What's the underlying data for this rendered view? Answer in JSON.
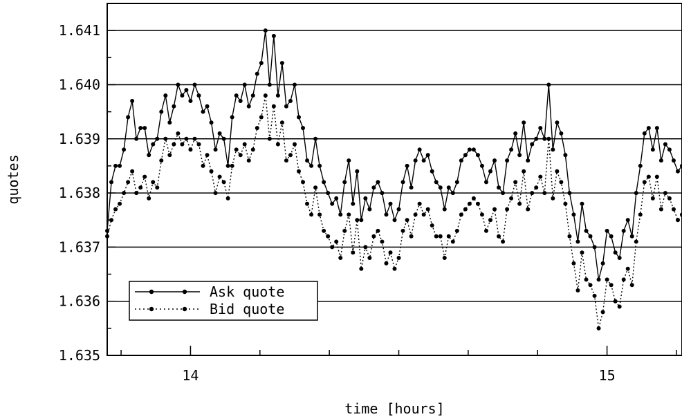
{
  "chart_data": {
    "type": "line",
    "xlabel": "time [hours]",
    "ylabel": "quotes",
    "xlim": [
      13.8,
      15.18
    ],
    "ylim": [
      1.635,
      1.6415
    ],
    "x_ticks": [
      14,
      15
    ],
    "x_tick_labels": [
      "14",
      "15"
    ],
    "y_ticks": [
      1.635,
      1.636,
      1.637,
      1.638,
      1.639,
      1.64,
      1.641
    ],
    "y_tick_labels": [
      "1.635",
      "1.636",
      "1.637",
      "1.638",
      "1.639",
      "1.640",
      "1.641"
    ],
    "grid": "horizontal",
    "legend_position": "bottom-left",
    "series": [
      {
        "name": "Ask quote",
        "style": "solid",
        "color": "#000000",
        "x": [
          13.8,
          13.81,
          13.82,
          13.83,
          13.84,
          13.85,
          13.86,
          13.87,
          13.88,
          13.89,
          13.9,
          13.91,
          13.92,
          13.93,
          13.94,
          13.95,
          13.96,
          13.97,
          13.98,
          13.99,
          14.0,
          14.01,
          14.02,
          14.03,
          14.04,
          14.05,
          14.06,
          14.07,
          14.08,
          14.09,
          14.1,
          14.11,
          14.12,
          14.13,
          14.14,
          14.15,
          14.16,
          14.17,
          14.18,
          14.19,
          14.2,
          14.21,
          14.22,
          14.23,
          14.24,
          14.25,
          14.26,
          14.27,
          14.28,
          14.29,
          14.3,
          14.31,
          14.32,
          14.33,
          14.34,
          14.35,
          14.36,
          14.37,
          14.38,
          14.39,
          14.4,
          14.41,
          14.42,
          14.43,
          14.44,
          14.45,
          14.46,
          14.47,
          14.48,
          14.49,
          14.5,
          14.51,
          14.52,
          14.53,
          14.54,
          14.55,
          14.56,
          14.57,
          14.58,
          14.59,
          14.6,
          14.61,
          14.62,
          14.63,
          14.64,
          14.65,
          14.66,
          14.67,
          14.68,
          14.69,
          14.7,
          14.71,
          14.72,
          14.73,
          14.74,
          14.75,
          14.76,
          14.77,
          14.78,
          14.79,
          14.8,
          14.81,
          14.82,
          14.83,
          14.84,
          14.85,
          14.86,
          14.87,
          14.88,
          14.89,
          14.9,
          14.91,
          14.92,
          14.93,
          14.94,
          14.95,
          14.96,
          14.97,
          14.98,
          14.99,
          15.0,
          15.01,
          15.02,
          15.03,
          15.04,
          15.05,
          15.06,
          15.07,
          15.08,
          15.09,
          15.1,
          15.11,
          15.12,
          15.13,
          15.14,
          15.15,
          15.16,
          15.17,
          15.18
        ],
        "y": [
          1.6373,
          1.6382,
          1.6385,
          1.6385,
          1.6388,
          1.6394,
          1.6397,
          1.639,
          1.6392,
          1.6392,
          1.6387,
          1.6389,
          1.639,
          1.6395,
          1.6398,
          1.6393,
          1.6396,
          1.64,
          1.6398,
          1.6399,
          1.6397,
          1.64,
          1.6398,
          1.6395,
          1.6396,
          1.6393,
          1.6388,
          1.6391,
          1.639,
          1.6385,
          1.6394,
          1.6398,
          1.6397,
          1.64,
          1.6396,
          1.6398,
          1.6402,
          1.6404,
          1.641,
          1.64,
          1.6409,
          1.6398,
          1.6404,
          1.6396,
          1.6397,
          1.64,
          1.6394,
          1.6392,
          1.6386,
          1.6385,
          1.639,
          1.6385,
          1.6382,
          1.638,
          1.6378,
          1.6379,
          1.6376,
          1.6382,
          1.6386,
          1.6378,
          1.6384,
          1.6375,
          1.6379,
          1.6377,
          1.6381,
          1.6382,
          1.638,
          1.6376,
          1.6378,
          1.6375,
          1.6377,
          1.6382,
          1.6385,
          1.6381,
          1.6386,
          1.6388,
          1.6386,
          1.6387,
          1.6384,
          1.6382,
          1.6381,
          1.6377,
          1.6381,
          1.638,
          1.6382,
          1.6386,
          1.6387,
          1.6388,
          1.6388,
          1.6387,
          1.6385,
          1.6382,
          1.6384,
          1.6386,
          1.6381,
          1.638,
          1.6386,
          1.6388,
          1.6391,
          1.6387,
          1.6393,
          1.6386,
          1.6389,
          1.639,
          1.6392,
          1.639,
          1.64,
          1.6388,
          1.6393,
          1.6391,
          1.6387,
          1.638,
          1.6376,
          1.6371,
          1.6378,
          1.6373,
          1.6372,
          1.637,
          1.6364,
          1.6367,
          1.6373,
          1.6372,
          1.6369,
          1.6368,
          1.6373,
          1.6375,
          1.6372,
          1.638,
          1.6385,
          1.6391,
          1.6392,
          1.6388,
          1.6392,
          1.6386,
          1.6389,
          1.6388,
          1.6386,
          1.6384,
          1.6385
        ]
      },
      {
        "name": "Bid quote",
        "style": "dotted",
        "color": "#000000",
        "x": [
          13.8,
          13.81,
          13.82,
          13.83,
          13.84,
          13.85,
          13.86,
          13.87,
          13.88,
          13.89,
          13.9,
          13.91,
          13.92,
          13.93,
          13.94,
          13.95,
          13.96,
          13.97,
          13.98,
          13.99,
          14.0,
          14.01,
          14.02,
          14.03,
          14.04,
          14.05,
          14.06,
          14.07,
          14.08,
          14.09,
          14.1,
          14.11,
          14.12,
          14.13,
          14.14,
          14.15,
          14.16,
          14.17,
          14.18,
          14.19,
          14.2,
          14.21,
          14.22,
          14.23,
          14.24,
          14.25,
          14.26,
          14.27,
          14.28,
          14.29,
          14.3,
          14.31,
          14.32,
          14.33,
          14.34,
          14.35,
          14.36,
          14.37,
          14.38,
          14.39,
          14.4,
          14.41,
          14.42,
          14.43,
          14.44,
          14.45,
          14.46,
          14.47,
          14.48,
          14.49,
          14.5,
          14.51,
          14.52,
          14.53,
          14.54,
          14.55,
          14.56,
          14.57,
          14.58,
          14.59,
          14.6,
          14.61,
          14.62,
          14.63,
          14.64,
          14.65,
          14.66,
          14.67,
          14.68,
          14.69,
          14.7,
          14.71,
          14.72,
          14.73,
          14.74,
          14.75,
          14.76,
          14.77,
          14.78,
          14.79,
          14.8,
          14.81,
          14.82,
          14.83,
          14.84,
          14.85,
          14.86,
          14.87,
          14.88,
          14.89,
          14.9,
          14.91,
          14.92,
          14.93,
          14.94,
          14.95,
          14.96,
          14.97,
          14.98,
          14.99,
          15.0,
          15.01,
          15.02,
          15.03,
          15.04,
          15.05,
          15.06,
          15.07,
          15.08,
          15.09,
          15.1,
          15.11,
          15.12,
          15.13,
          15.14,
          15.15,
          15.16,
          15.17,
          15.18
        ],
        "y": [
          1.6372,
          1.6375,
          1.6377,
          1.6378,
          1.638,
          1.6382,
          1.6384,
          1.638,
          1.6381,
          1.6383,
          1.6379,
          1.6382,
          1.6381,
          1.6386,
          1.639,
          1.6387,
          1.6389,
          1.6391,
          1.6389,
          1.639,
          1.6388,
          1.639,
          1.6389,
          1.6385,
          1.6387,
          1.6384,
          1.638,
          1.6383,
          1.6382,
          1.6379,
          1.6385,
          1.6388,
          1.6387,
          1.6389,
          1.6386,
          1.6388,
          1.6392,
          1.6394,
          1.6398,
          1.639,
          1.6396,
          1.6389,
          1.6393,
          1.6386,
          1.6387,
          1.6389,
          1.6384,
          1.6382,
          1.6378,
          1.6376,
          1.6381,
          1.6376,
          1.6373,
          1.6372,
          1.637,
          1.6371,
          1.6368,
          1.6373,
          1.6376,
          1.6369,
          1.6375,
          1.6366,
          1.637,
          1.6368,
          1.6372,
          1.6373,
          1.6371,
          1.6367,
          1.6369,
          1.6366,
          1.6368,
          1.6373,
          1.6375,
          1.6372,
          1.6376,
          1.6378,
          1.6376,
          1.6377,
          1.6374,
          1.6372,
          1.6372,
          1.6368,
          1.6372,
          1.6371,
          1.6373,
          1.6376,
          1.6377,
          1.6378,
          1.6379,
          1.6378,
          1.6376,
          1.6373,
          1.6375,
          1.6377,
          1.6372,
          1.6371,
          1.6377,
          1.6379,
          1.6382,
          1.6378,
          1.6384,
          1.6377,
          1.638,
          1.6381,
          1.6383,
          1.638,
          1.639,
          1.6379,
          1.6384,
          1.6382,
          1.6378,
          1.6372,
          1.6367,
          1.6362,
          1.6369,
          1.6364,
          1.6363,
          1.6361,
          1.6355,
          1.6358,
          1.6364,
          1.6363,
          1.636,
          1.6359,
          1.6364,
          1.6366,
          1.6363,
          1.6371,
          1.6376,
          1.6382,
          1.6383,
          1.6379,
          1.6383,
          1.6377,
          1.638,
          1.6379,
          1.6377,
          1.6375,
          1.6376
        ]
      }
    ]
  }
}
